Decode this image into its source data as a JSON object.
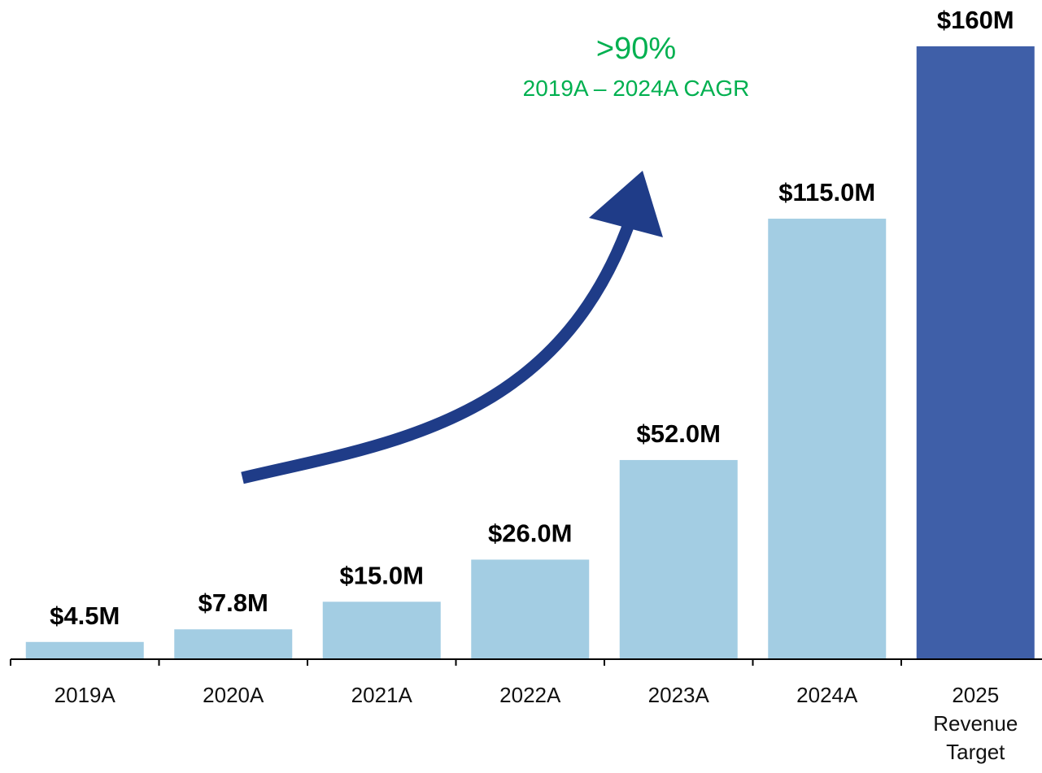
{
  "chart_data": {
    "type": "bar",
    "categories": [
      "2019A",
      "2020A",
      "2021A",
      "2022A",
      "2023A",
      "2024A",
      "2025 Revenue Target"
    ],
    "values": [
      4.5,
      7.8,
      15,
      26,
      52,
      115,
      160
    ],
    "value_labels": [
      "$4.5M",
      "$7.8M",
      "$15.0M",
      "$26.0M",
      "$52.0M",
      "$115.0M",
      "$160M"
    ],
    "colors": [
      "#a3cde3",
      "#a3cde3",
      "#a3cde3",
      "#a3cde3",
      "#a3cde3",
      "#a3cde3",
      "#3f5fa8"
    ],
    "annotations": [
      ">90%",
      "2019A – 2024A CAGR"
    ]
  }
}
